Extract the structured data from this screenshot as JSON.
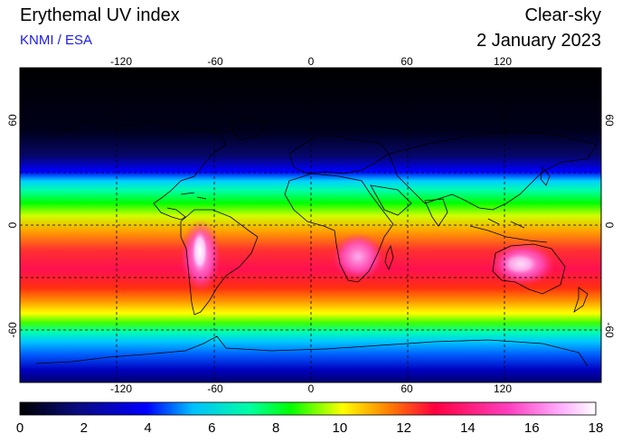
{
  "header": {
    "title": "Erythemal UV index",
    "credit": "KNMI / ESA",
    "mode": "Clear-sky",
    "date": "2 January 2023"
  },
  "map": {
    "projection": "equirectangular",
    "longitude_ticks": [
      "-120",
      "-60",
      "0",
      "60",
      "120"
    ],
    "latitude_ticks": [
      "60",
      "0",
      "-60"
    ],
    "grid": "dashed",
    "field": "erythemal UV index, clear-sky, southern-hemisphere summer",
    "highlight_regions": [
      "Andes / western South America (~18)",
      "southern Africa (~16)",
      "Australia (~16)"
    ]
  },
  "colorbar": {
    "min": 0,
    "max": 18,
    "tick_labels": [
      "0",
      "2",
      "4",
      "6",
      "8",
      "10",
      "12",
      "14",
      "16",
      "18"
    ],
    "colors": [
      "#000000",
      "#0a0a80",
      "#0000ff",
      "#00c0ff",
      "#00ffa0",
      "#00ff00",
      "#ffff00",
      "#ff8000",
      "#ff0040",
      "#ff40c0",
      "#ffc0ff",
      "#ffffff"
    ]
  }
}
